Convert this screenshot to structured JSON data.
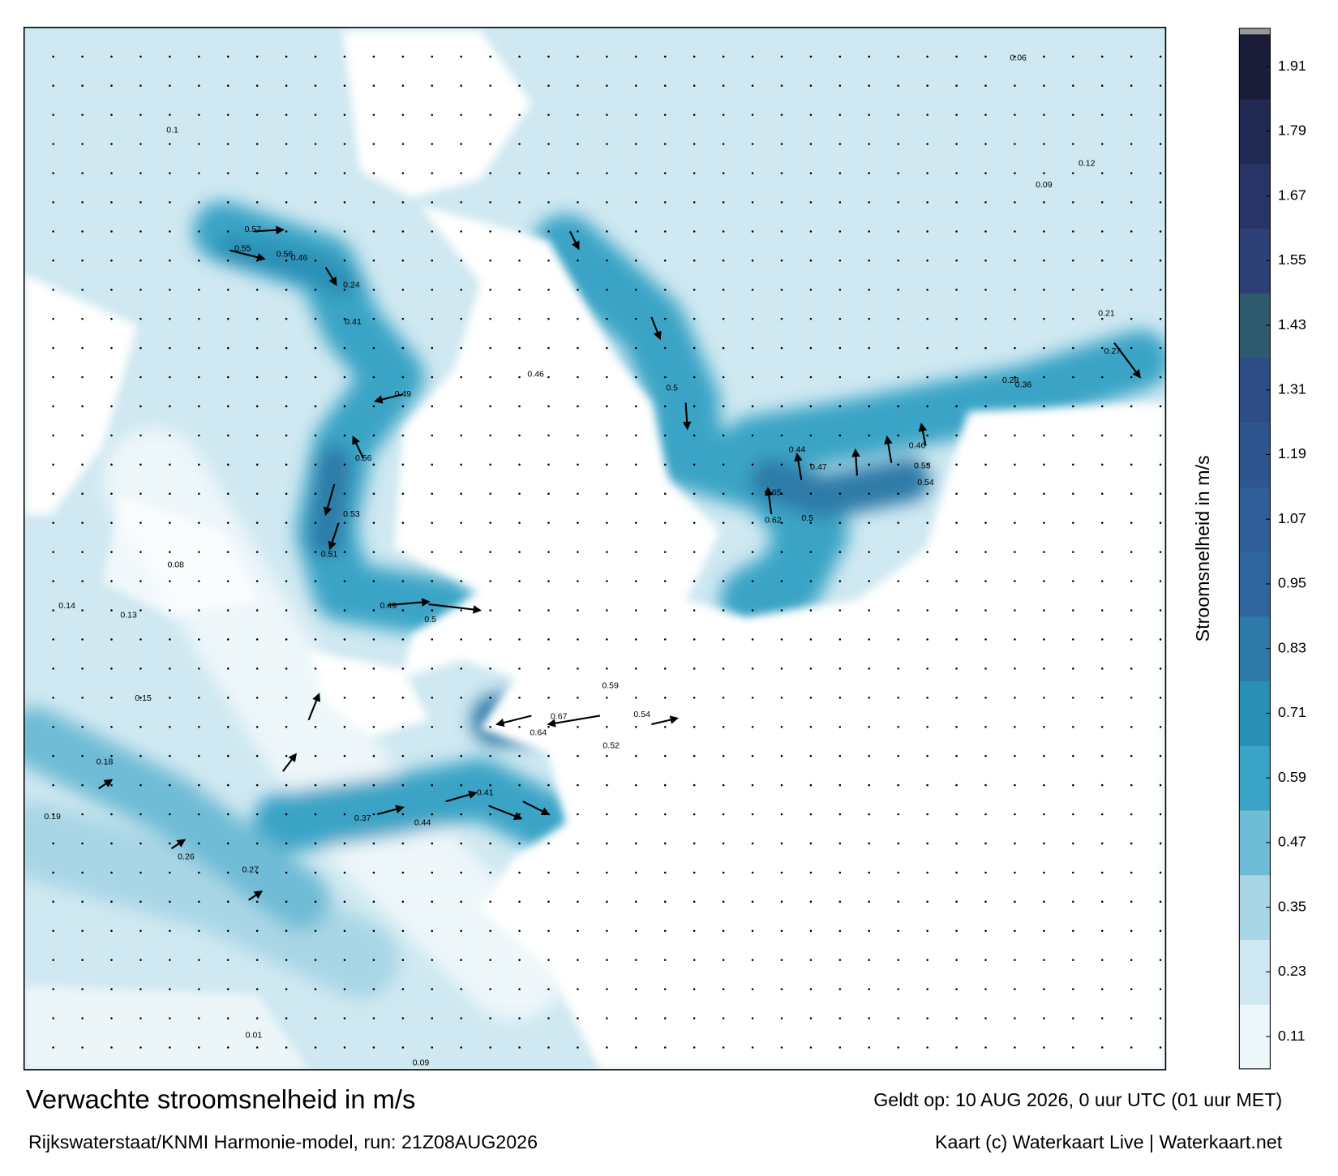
{
  "map": {
    "title": "Verwachte stroomsnelheid in m/s",
    "subtitle": "Rijkswaterstaat/KNMI Harmonie-model, run: 21Z08AUG2026",
    "valid": "Geldt op: 10 AUG 2026, 0 uur UTC (01 uur MET)",
    "credit": "Kaart (c) Waterkaart Live | Waterkaart.net",
    "colorbar": {
      "label": "Stroomsnelheid in m/s",
      "lim": [
        0.05,
        1.97
      ],
      "ticks": [
        0.11,
        0.23,
        0.35,
        0.47,
        0.59,
        0.71,
        0.83,
        0.95,
        1.07,
        1.19,
        1.31,
        1.43,
        1.55,
        1.67,
        1.79,
        1.91
      ],
      "colors": [
        "#eef7fa",
        "#cfe8f1",
        "#a9d6e6",
        "#6fbcd6",
        "#3ba4c6",
        "#2a8fb5",
        "#2d7aa8",
        "#2f66a0",
        "#2f5e98",
        "#2f558f",
        "#2e4c86",
        "#2f5a6e",
        "#2c4076",
        "#283466",
        "#212a52",
        "#1b1d38"
      ]
    },
    "labels": [
      0.57,
      0.55,
      0.56,
      0.46,
      0.24,
      0.41,
      0.49,
      0.56,
      0.53,
      0.51,
      0.5,
      0.49,
      0.46,
      0.5,
      0.65,
      0.62,
      0.5,
      0.44,
      0.47,
      0.46,
      0.53,
      0.54,
      0.67,
      0.64,
      0.54,
      0.59,
      0.52,
      0.44,
      0.41,
      0.37,
      0.36,
      0.28,
      0.27,
      0.21,
      0.13,
      0.14,
      0.18,
      0.19,
      0.26,
      0.27,
      0.15,
      0.08,
      0.09,
      0.12,
      0.06,
      0.01,
      0.09,
      0.1
    ]
  }
}
